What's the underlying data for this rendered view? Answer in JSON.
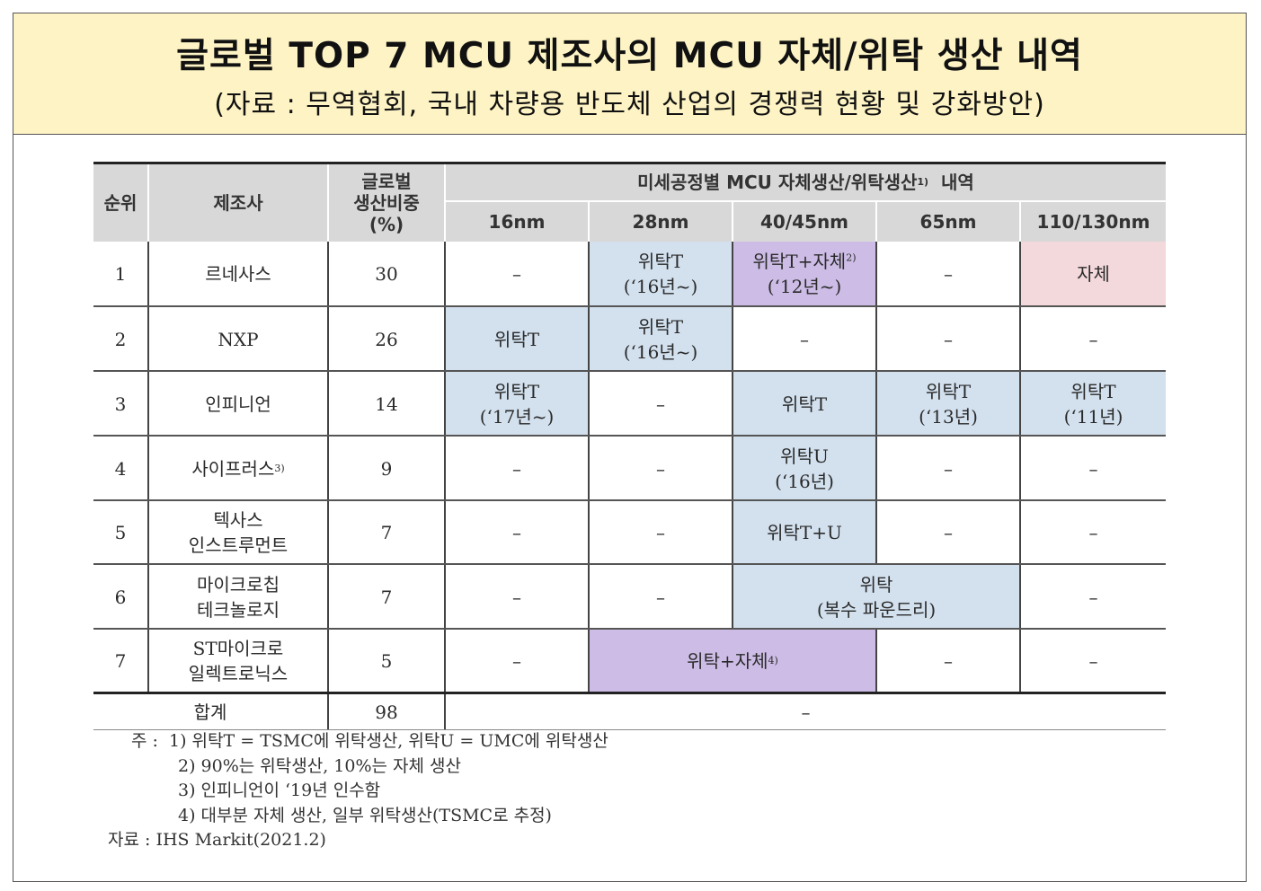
{
  "header": {
    "title": "글로벌 TOP 7 MCU 제조사의 MCU 자체/위탁 생산 내역",
    "subtitle": "(자료 : 무역협회, 국내 차량용 반도체 산업의 경쟁력 현황 및 강화방안)"
  },
  "table": {
    "col_rank": "순위",
    "col_maker": "제조사",
    "col_share_1": "글로벌",
    "col_share_2": "생산비중",
    "col_share_3": "(%)",
    "group_header": "미세공정별 MCU 자체생산/위탁생산",
    "group_header_sup": "1)",
    "group_header_tail": "내역",
    "nodes": [
      "16nm",
      "28nm",
      "40/45nm",
      "65nm",
      "110/130nm"
    ],
    "dash": "–",
    "rows": [
      {
        "rank": "1",
        "maker": [
          "르네사스"
        ],
        "share": "30",
        "c16": [],
        "c28": [
          "위탁T",
          "(‘16년~)"
        ],
        "c40": [
          "위탁T+자체",
          "(‘12년~)"
        ],
        "c40_sup": "2)",
        "c65": [],
        "c110": [
          "자체"
        ]
      },
      {
        "rank": "2",
        "maker": [
          "NXP"
        ],
        "share": "26",
        "c16": [
          "위탁T"
        ],
        "c28": [
          "위탁T",
          "(‘16년~)"
        ],
        "c40": [],
        "c65": [],
        "c110": []
      },
      {
        "rank": "3",
        "maker": [
          "인피니언"
        ],
        "share": "14",
        "c16": [
          "위탁T",
          "(‘17년~)"
        ],
        "c28": [],
        "c40": [
          "위탁T"
        ],
        "c65": [
          "위탁T",
          "(‘13년)"
        ],
        "c110": [
          "위탁T",
          "(‘11년)"
        ]
      },
      {
        "rank": "4",
        "maker": [
          "사이프러스"
        ],
        "maker_sup": "3)",
        "share": "9",
        "c16": [],
        "c28": [],
        "c40": [
          "위탁U",
          "(‘16년)"
        ],
        "c65": [],
        "c110": []
      },
      {
        "rank": "5",
        "maker": [
          "텍사스",
          "인스트루먼트"
        ],
        "share": "7",
        "c16": [],
        "c28": [],
        "c40": [
          "위탁T+U"
        ],
        "c65": [],
        "c110": []
      },
      {
        "rank": "6",
        "maker": [
          "마이크로칩",
          "테크놀로지"
        ],
        "share": "7",
        "c16": [],
        "c28": [],
        "c40_65": [
          "위탁",
          "(복수 파운드리)"
        ],
        "c110": []
      },
      {
        "rank": "7",
        "maker": [
          "ST마이크로",
          "일렉트로닉스"
        ],
        "share": "5",
        "c16": [],
        "c28_40": [
          "위탁+자체"
        ],
        "c28_40_sup": "4)",
        "c65": [],
        "c110": []
      }
    ],
    "total_label": "합계",
    "total_share": "98",
    "total_rest": "–"
  },
  "notes": {
    "prefix": "주 :",
    "n1": "1) 위탁T = TSMC에 위탁생산, 위탁U = UMC에 위탁생산",
    "n2": "2) 90%는 위탁생산, 10%는 자체 생산",
    "n3": "3) 인피니언이 ‘19년 인수함",
    "n4": "4) 대부분 자체 생산, 일부 위탁생산(TSMC로 추정)",
    "source": "자료 : IHS Markit(2021.2)"
  }
}
